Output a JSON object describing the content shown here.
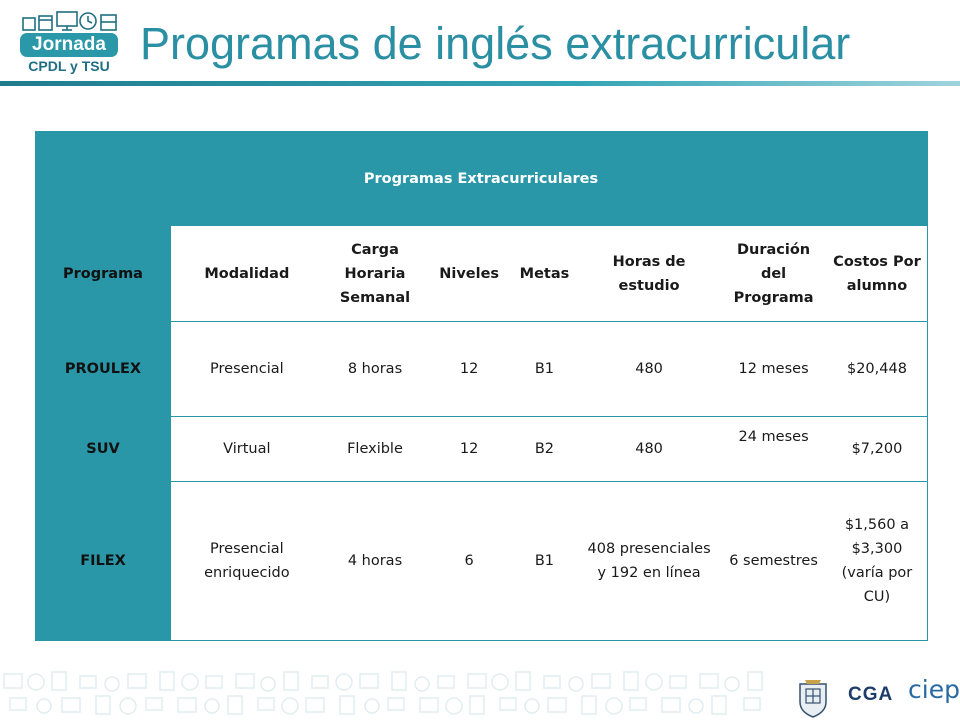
{
  "logo": {
    "word": "Jornada",
    "subtitle": "CPDL y TSU"
  },
  "title": "Programas de inglés extracurricular",
  "table": {
    "caption": "Programas Extracurriculares",
    "headers": [
      "Programa",
      "Modalidad",
      "Carga Horaria Semanal",
      "Niveles",
      "Metas",
      "Horas de estudio",
      "Duración del Programa",
      "Costos Por alumno"
    ],
    "rows": [
      [
        "PROULEX",
        "Presencial",
        "8 horas",
        "12",
        "B1",
        "480",
        "12 meses",
        "$20,448"
      ],
      [
        "SUV",
        "Virtual",
        "Flexible",
        "12",
        "B2",
        "480",
        "24 meses",
        "$7,200"
      ],
      [
        "FILEX",
        "Presencial enriquecido",
        "4 horas",
        "6",
        "B1",
        "408 presenciales y 192 en línea",
        "6 semestres",
        "$1,560 a $3,300 (varía por CU)"
      ]
    ]
  },
  "footer": {
    "org": "CGA",
    "brand": "ciep"
  },
  "colors": {
    "accent": "#2a97a8",
    "title": "#2a8fa3",
    "ciep": "#2a6aa3",
    "cga": "#1f3d6b"
  },
  "icons": [
    "office-icons-logo",
    "university-seal-icon"
  ]
}
